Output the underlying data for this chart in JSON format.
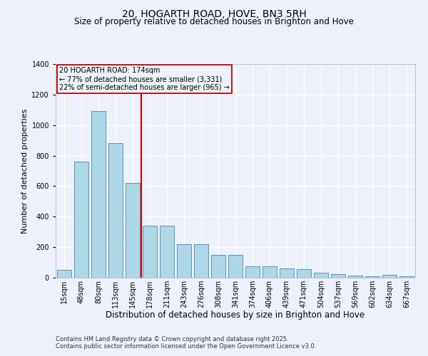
{
  "title": "20, HOGARTH ROAD, HOVE, BN3 5RH",
  "subtitle": "Size of property relative to detached houses in Brighton and Hove",
  "xlabel": "Distribution of detached houses by size in Brighton and Hove",
  "ylabel": "Number of detached properties",
  "footnote1": "Contains HM Land Registry data © Crown copyright and database right 2025.",
  "footnote2": "Contains public sector information licensed under the Open Government Licence v3.0.",
  "categories": [
    "15sqm",
    "48sqm",
    "80sqm",
    "113sqm",
    "145sqm",
    "178sqm",
    "211sqm",
    "243sqm",
    "276sqm",
    "308sqm",
    "341sqm",
    "374sqm",
    "406sqm",
    "439sqm",
    "471sqm",
    "504sqm",
    "537sqm",
    "569sqm",
    "602sqm",
    "634sqm",
    "667sqm"
  ],
  "values": [
    50,
    760,
    1090,
    880,
    620,
    340,
    340,
    220,
    220,
    150,
    150,
    75,
    75,
    60,
    55,
    35,
    25,
    15,
    10,
    20,
    8
  ],
  "bar_color": "#add8e6",
  "bar_edge_color": "#5a8fc0",
  "vline_pos": 4.5,
  "vline_color": "#cc0000",
  "annotation_text": "20 HOGARTH ROAD: 174sqm\n← 77% of detached houses are smaller (3,331)\n22% of semi-detached houses are larger (965) →",
  "annotation_box_color": "#cc0000",
  "ylim": [
    0,
    1400
  ],
  "yticks": [
    0,
    200,
    400,
    600,
    800,
    1000,
    1200,
    1400
  ],
  "background_color": "#edf1fb",
  "grid_color": "#ffffff",
  "title_fontsize": 10,
  "subtitle_fontsize": 8.5,
  "label_fontsize": 8.5,
  "ylabel_fontsize": 8,
  "tick_fontsize": 7,
  "footnote_fontsize": 6,
  "ann_fontsize": 7
}
